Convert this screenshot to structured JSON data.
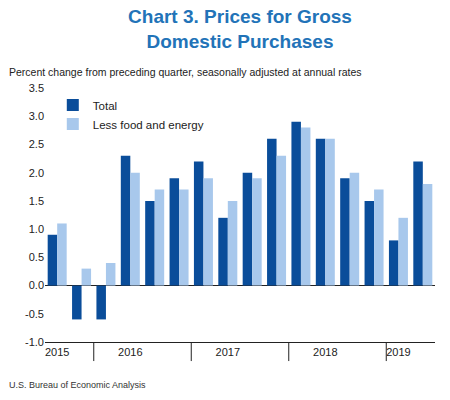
{
  "chart_data": {
    "type": "bar",
    "title": "Chart 3. Prices for Gross Domestic Purchases",
    "subtitle": "Percent change from preceding quarter, seasonally adjusted at annual rates",
    "source": "U.S. Bureau of Economic Analysis",
    "categories": [
      "2015",
      null,
      null,
      "2016",
      null,
      null,
      null,
      "2017",
      null,
      null,
      null,
      "2018",
      null,
      null,
      "2019",
      null
    ],
    "series": [
      {
        "name": "Total",
        "color": "#0a4d9a",
        "values": [
          0.9,
          -0.6,
          -0.6,
          2.3,
          1.5,
          1.9,
          2.2,
          1.2,
          2.0,
          2.6,
          2.9,
          2.6,
          1.9,
          1.5,
          0.8,
          2.2
        ]
      },
      {
        "name": "Less food and energy",
        "color": "#a8c8ec",
        "values": [
          1.1,
          0.3,
          0.4,
          2.0,
          1.7,
          1.7,
          1.9,
          1.5,
          1.9,
          2.3,
          2.8,
          2.6,
          2.0,
          1.7,
          1.2,
          1.8
        ]
      }
    ],
    "ylim": [
      -1.0,
      3.5
    ],
    "yticks": [
      {
        "value": -1.0,
        "label": "-1.0"
      },
      -0.5,
      {
        "value": 0,
        "label": "0.0"
      },
      0.5,
      {
        "value": 1.0,
        "label": "1.0"
      },
      1.5,
      {
        "value": 2.0,
        "label": "2.0"
      },
      2.5,
      {
        "value": 3.0,
        "label": "3.0"
      },
      3.5
    ],
    "grid": false,
    "legend": "top-left",
    "data_labels": false
  }
}
